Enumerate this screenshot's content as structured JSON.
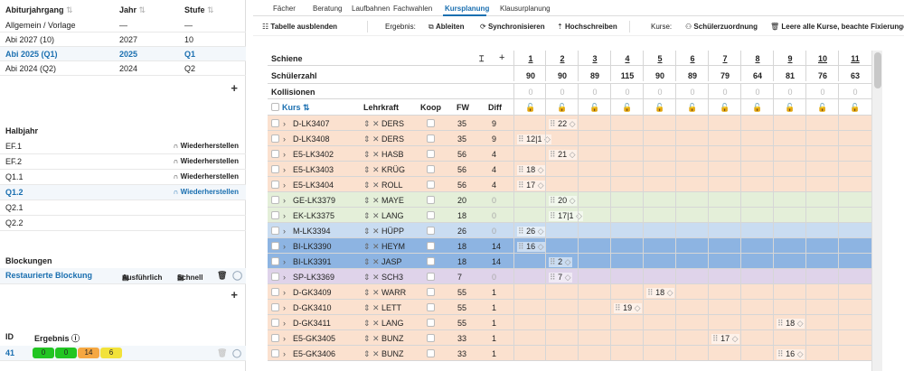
{
  "left": {
    "abi_header": {
      "col1": "Abiturjahrgang",
      "col2": "Jahr",
      "col3": "Stufe"
    },
    "abi_rows": [
      {
        "name": "Allgemein / Vorlage",
        "jahr": "—",
        "stufe": "—",
        "selected": false
      },
      {
        "name": "Abi 2027 (10)",
        "jahr": "2027",
        "stufe": "10",
        "selected": false
      },
      {
        "name": "Abi 2025 (Q1)",
        "jahr": "2025",
        "stufe": "Q1",
        "selected": true
      },
      {
        "name": "Abi 2024 (Q2)",
        "jahr": "2024",
        "stufe": "Q2",
        "selected": false
      }
    ],
    "halbjahr_title": "Halbjahr",
    "halbjahr_rows": [
      {
        "name": "EF.1",
        "action": "Wiederherstellen",
        "selected": false
      },
      {
        "name": "EF.2",
        "action": "Wiederherstellen",
        "selected": false
      },
      {
        "name": "Q1.1",
        "action": "Wiederherstellen",
        "selected": false
      },
      {
        "name": "Q1.2",
        "action": "Wiederherstellen",
        "selected": true
      },
      {
        "name": "Q2.1",
        "action": "",
        "selected": false
      },
      {
        "name": "Q2.2",
        "action": "",
        "selected": false
      }
    ],
    "blockungen_title": "Blockungen",
    "blockung_name": "Restaurierte Blockung",
    "btn_ausfuehrlich": "Ausführlich",
    "btn_schnell": "Schnell",
    "id_label": "ID",
    "ergebnis_label": "Ergebnis",
    "ergebnis_id": "41",
    "ergebnis_values": [
      {
        "v": "0",
        "color": "#22c522"
      },
      {
        "v": "0",
        "color": "#22c522"
      },
      {
        "v": "14",
        "color": "#f5a742"
      },
      {
        "v": "6",
        "color": "#f2e23a"
      }
    ]
  },
  "tabs": [
    "Fächer",
    "Beratung",
    "Laufbahnen",
    "Fachwahlen",
    "Kursplanung",
    "Klausurplanung"
  ],
  "active_tab": 4,
  "toolbar": {
    "hide": "Tabelle ausblenden",
    "ergebnis": "Ergebnis:",
    "ableiten": "Ableiten",
    "sync": "Synchronisieren",
    "hochschreiben": "Hochschreiben",
    "kurse": "Kurse:",
    "schuelerzuordnung": "Schülerzuordnung",
    "leere": "Leere alle Kurse, beachte Fixierungen"
  },
  "grid": {
    "schiene_label": "Schiene",
    "schuelerzahl_label": "Schülerzahl",
    "kollisionen_label": "Kollisionen",
    "schienen": [
      "1",
      "2",
      "3",
      "4",
      "5",
      "6",
      "7",
      "8",
      "9",
      "10",
      "11"
    ],
    "schuelerzahl": [
      "90",
      "90",
      "89",
      "115",
      "90",
      "89",
      "79",
      "64",
      "81",
      "76",
      "63"
    ],
    "kollisionen": [
      "0",
      "0",
      "0",
      "0",
      "0",
      "0",
      "0",
      "0",
      "0",
      "0",
      "0"
    ],
    "col_kurs": "Kurs",
    "col_lehrkraft": "Lehrkraft",
    "col_koop": "Koop",
    "col_fw": "FW",
    "col_diff": "Diff",
    "rows": [
      {
        "kurs": "D-LK3407",
        "lk": "DERS",
        "fw": "35",
        "diff": "9",
        "color": "#fbe1cf",
        "cells": {
          "1": "22"
        }
      },
      {
        "kurs": "D-LK3408",
        "lk": "DERS",
        "fw": "35",
        "diff": "9",
        "color": "#fbe1cf",
        "cells": {
          "0": "12|1"
        }
      },
      {
        "kurs": "E5-LK3402",
        "lk": "HASB",
        "fw": "56",
        "diff": "4",
        "color": "#fbe1cf",
        "cells": {
          "1": "21"
        }
      },
      {
        "kurs": "E5-LK3403",
        "lk": "KRÜG",
        "fw": "56",
        "diff": "4",
        "color": "#fbe1cf",
        "cells": {
          "0": "18"
        }
      },
      {
        "kurs": "E5-LK3404",
        "lk": "ROLL",
        "fw": "56",
        "diff": "4",
        "color": "#fbe1cf",
        "cells": {
          "0": "17"
        }
      },
      {
        "kurs": "GE-LK3379",
        "lk": "MAYE",
        "fw": "20",
        "diff": "0",
        "color": "#e4efd9",
        "cells": {
          "1": "20"
        }
      },
      {
        "kurs": "EK-LK3375",
        "lk": "LANG",
        "fw": "18",
        "diff": "0",
        "color": "#e4efd9",
        "cells": {
          "1": "17|1"
        }
      },
      {
        "kurs": "M-LK3394",
        "lk": "HÜPP",
        "fw": "26",
        "diff": "0",
        "color": "#c9dcf1",
        "cells": {
          "0": "26"
        }
      },
      {
        "kurs": "BI-LK3390",
        "lk": "HEYM",
        "fw": "18",
        "diff": "14",
        "color": "#8db4e2",
        "cells": {
          "0": "16"
        }
      },
      {
        "kurs": "BI-LK3391",
        "lk": "JASP",
        "fw": "18",
        "diff": "14",
        "color": "#8db4e2",
        "cells": {
          "1": "2"
        }
      },
      {
        "kurs": "SP-LK3369",
        "lk": "SCH3",
        "fw": "7",
        "diff": "0",
        "color": "#dfd3ea",
        "cells": {
          "1": "7"
        }
      },
      {
        "kurs": "D-GK3409",
        "lk": "WARR",
        "fw": "55",
        "diff": "1",
        "color": "#fbe1cf",
        "cells": {
          "4": "18"
        }
      },
      {
        "kurs": "D-GK3410",
        "lk": "LETT",
        "fw": "55",
        "diff": "1",
        "color": "#fbe1cf",
        "cells": {
          "3": "19"
        }
      },
      {
        "kurs": "D-GK3411",
        "lk": "LANG",
        "fw": "55",
        "diff": "1",
        "color": "#fbe1cf",
        "cells": {
          "8": "18"
        }
      },
      {
        "kurs": "E5-GK3405",
        "lk": "BUNZ",
        "fw": "33",
        "diff": "1",
        "color": "#fbe1cf",
        "cells": {
          "6": "17"
        }
      },
      {
        "kurs": "E5-GK3406",
        "lk": "BUNZ",
        "fw": "33",
        "diff": "1",
        "color": "#fbe1cf",
        "cells": {
          "8": "16"
        }
      }
    ]
  }
}
